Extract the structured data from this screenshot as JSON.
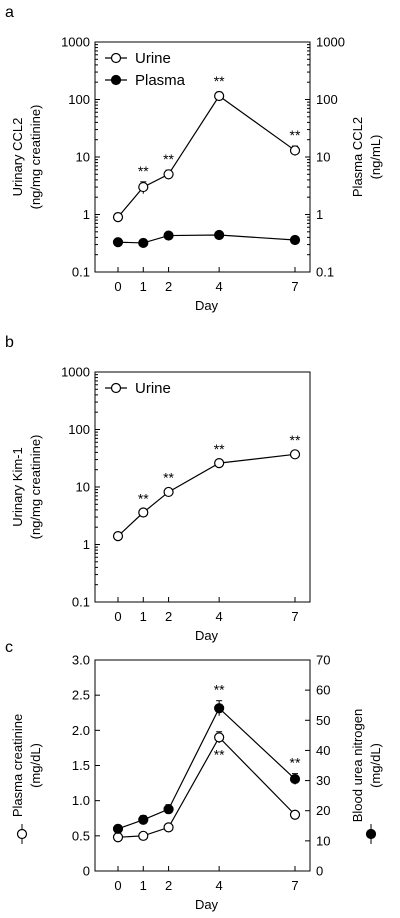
{
  "panels": [
    {
      "letter": "a",
      "chart_data": {
        "type": "line",
        "y_scale": "log",
        "x": [
          0,
          1,
          2,
          4,
          7
        ],
        "xticks": [
          "0",
          "1",
          "2",
          "4",
          "7"
        ],
        "xlabel": "Day",
        "ylabel_left": [
          "Urinary CCL2",
          "(ng/mg creatinine)"
        ],
        "ylabel_right": [
          "Plasma CCL2",
          "(ng/mL)"
        ],
        "ylim": [
          0.1,
          1000
        ],
        "yticks": [
          "0.1",
          "1",
          "10",
          "100",
          "1000"
        ],
        "legend_placement": "top-left",
        "series": [
          {
            "name": "Urine",
            "marker": "open",
            "axis": "left",
            "values": [
              0.9,
              3.0,
              5.0,
              115,
              13
            ],
            "errors": [
              0.15,
              0.7,
              0.9,
              20,
              2.5
            ],
            "significance": [
              "",
              "**",
              "**",
              "**",
              "**"
            ]
          },
          {
            "name": "Plasma",
            "marker": "filled",
            "axis": "right",
            "values": [
              0.33,
              0.32,
              0.43,
              0.44,
              0.36
            ],
            "errors": [
              0.05,
              0.04,
              0.06,
              0.06,
              0.05
            ],
            "significance": [
              "",
              "",
              "",
              "",
              ""
            ]
          }
        ]
      }
    },
    {
      "letter": "b",
      "chart_data": {
        "type": "line",
        "y_scale": "log",
        "x": [
          0,
          1,
          2,
          4,
          7
        ],
        "xticks": [
          "0",
          "1",
          "2",
          "4",
          "7"
        ],
        "xlabel": "Day",
        "ylabel_left": [
          "Urinary Kim-1",
          "(ng/mg creatinine)"
        ],
        "ylim": [
          0.1,
          1000
        ],
        "yticks": [
          "0.1",
          "1",
          "10",
          "100",
          "1000"
        ],
        "legend_placement": "top-left",
        "series": [
          {
            "name": "Urine",
            "marker": "open",
            "axis": "left",
            "values": [
              1.4,
              3.6,
              8.2,
              26,
              37
            ],
            "errors": [
              0.2,
              0.5,
              1.2,
              3.5,
              5
            ],
            "significance": [
              "",
              "**",
              "**",
              "**",
              "**"
            ]
          }
        ]
      }
    },
    {
      "letter": "c",
      "chart_data": {
        "type": "line",
        "y_scale": "linear",
        "x": [
          0,
          1,
          2,
          4,
          7
        ],
        "xticks": [
          "0",
          "1",
          "2",
          "4",
          "7"
        ],
        "xlabel": "Day",
        "ylabel_left": [
          "Plasma creatinine",
          "(mg/dL)"
        ],
        "ylabel_right": [
          "Blood urea nitrogen",
          "(mg/dL)"
        ],
        "ylim_left": [
          0,
          3.0
        ],
        "yticks_left": [
          "0",
          "0.5",
          "1.0",
          "1.5",
          "2.0",
          "2.5",
          "3.0"
        ],
        "ylim_right": [
          0,
          70
        ],
        "yticks_right": [
          "0",
          "10",
          "20",
          "30",
          "40",
          "50",
          "60",
          "70"
        ],
        "series": [
          {
            "marker": "open",
            "axis": "left",
            "values": [
              0.48,
              0.5,
              0.62,
              1.9,
              0.8
            ],
            "errors": [
              0.04,
              0.04,
              0.05,
              0.08,
              0.05
            ],
            "significance": [
              "",
              "",
              "",
              "**",
              ""
            ]
          },
          {
            "marker": "filled",
            "axis": "right",
            "values": [
              14,
              17,
              20.5,
              54,
              30.5
            ],
            "errors": [
              1.2,
              1.4,
              1.5,
              2.5,
              1.8
            ],
            "significance": [
              "",
              "",
              "",
              "**",
              "**"
            ]
          }
        ]
      }
    }
  ]
}
